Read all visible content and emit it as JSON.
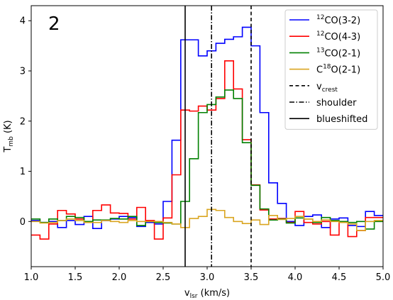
{
  "chart_data": {
    "type": "line",
    "step": true,
    "panel_label": "2",
    "xlabel": "v_lsr (km/s)",
    "xlabel_parts": {
      "main": "v",
      "sub": "lsr",
      "rest": " (km/s)"
    },
    "ylabel": "T_mb (K)",
    "ylabel_parts": {
      "main": "T",
      "sub": "mb",
      "rest": " (K)"
    },
    "xlim": [
      1.0,
      5.0
    ],
    "ylim": [
      -0.9,
      4.3
    ],
    "xticks": [
      1.0,
      1.5,
      2.0,
      2.5,
      3.0,
      3.5,
      4.0,
      4.5,
      5.0
    ],
    "xtick_labels": [
      "1.0",
      "1.5",
      "2.0",
      "2.5",
      "3.0",
      "3.5",
      "4.0",
      "4.5",
      "5.0"
    ],
    "yticks": [
      0,
      1,
      2,
      3,
      4
    ],
    "ytick_labels": [
      "0",
      "1",
      "2",
      "3",
      "4"
    ],
    "legend_position": "top-right",
    "series": [
      {
        "name": "12CO(3-2)",
        "label": {
          "sup": "12",
          "main": "CO(3-2)"
        },
        "color": "#0000ff",
        "x": [
          1.0,
          1.1,
          1.2,
          1.3,
          1.4,
          1.5,
          1.6,
          1.7,
          1.8,
          1.9,
          2.0,
          2.1,
          2.2,
          2.3,
          2.4,
          2.5,
          2.6,
          2.7,
          2.8,
          2.9,
          3.0,
          3.1,
          3.2,
          3.3,
          3.4,
          3.5,
          3.6,
          3.7,
          3.8,
          3.9,
          4.0,
          4.1,
          4.2,
          4.3,
          4.4,
          4.5,
          4.6,
          4.7,
          4.8,
          4.9
        ],
        "y": [
          0.02,
          -0.02,
          0.0,
          -0.12,
          0.02,
          -0.06,
          0.1,
          -0.14,
          0.02,
          0.05,
          0.1,
          0.08,
          -0.1,
          -0.02,
          -0.05,
          0.4,
          1.62,
          3.62,
          3.62,
          3.3,
          3.4,
          3.55,
          3.63,
          3.68,
          3.87,
          3.5,
          2.17,
          0.77,
          0.36,
          0.0,
          -0.08,
          0.1,
          0.13,
          -0.12,
          0.05,
          0.07,
          -0.08,
          -0.1,
          0.2,
          0.12
        ]
      },
      {
        "name": "12CO(4-3)",
        "label": {
          "sup": "12",
          "main": "CO(4-3)"
        },
        "color": "#ff0000",
        "x": [
          1.0,
          1.1,
          1.2,
          1.3,
          1.4,
          1.5,
          1.6,
          1.7,
          1.8,
          1.9,
          2.0,
          2.1,
          2.2,
          2.3,
          2.4,
          2.5,
          2.6,
          2.7,
          2.8,
          2.9,
          3.0,
          3.1,
          3.2,
          3.3,
          3.4,
          3.5,
          3.6,
          3.7,
          3.8,
          3.9,
          4.0,
          4.1,
          4.2,
          4.3,
          4.4,
          4.5,
          4.6,
          4.7,
          4.8,
          4.9
        ],
        "y": [
          -0.27,
          -0.35,
          -0.05,
          0.22,
          0.15,
          0.05,
          0.0,
          0.22,
          0.33,
          0.17,
          0.16,
          0.05,
          0.28,
          0.02,
          -0.35,
          0.07,
          0.93,
          2.22,
          2.2,
          2.3,
          2.22,
          2.45,
          3.2,
          2.64,
          1.63,
          0.73,
          0.23,
          0.05,
          0.06,
          -0.02,
          0.2,
          -0.02,
          -0.05,
          0.0,
          -0.27,
          -0.02,
          -0.3,
          -0.18,
          0.08,
          0.08
        ]
      },
      {
        "name": "13CO(2-1)",
        "label": {
          "sup": "13",
          "main": "CO(2-1)"
        },
        "color": "#008000",
        "x": [
          1.0,
          1.1,
          1.2,
          1.3,
          1.4,
          1.5,
          1.6,
          1.7,
          1.8,
          1.9,
          2.0,
          2.1,
          2.2,
          2.3,
          2.4,
          2.5,
          2.6,
          2.7,
          2.8,
          2.9,
          3.0,
          3.1,
          3.2,
          3.3,
          3.4,
          3.5,
          3.6,
          3.7,
          3.8,
          3.9,
          4.0,
          4.1,
          4.2,
          4.3,
          4.4,
          4.5,
          4.6,
          4.7,
          4.8,
          4.9
        ],
        "y": [
          0.05,
          -0.02,
          0.05,
          0.02,
          0.1,
          0.08,
          0.0,
          0.03,
          0.03,
          0.06,
          0.05,
          0.1,
          -0.08,
          0.0,
          -0.02,
          -0.03,
          -0.05,
          0.4,
          1.25,
          2.17,
          2.33,
          2.48,
          2.62,
          2.45,
          1.57,
          0.72,
          0.25,
          0.03,
          0.05,
          -0.03,
          0.07,
          0.05,
          -0.02,
          0.08,
          0.02,
          0.0,
          -0.02,
          0.0,
          -0.15,
          0.0
        ]
      },
      {
        "name": "C18O(2-1)",
        "label": {
          "pre": "C",
          "sup": "18",
          "main": "O(2-1)"
        },
        "color": "#daa520",
        "x": [
          1.0,
          1.1,
          1.2,
          1.3,
          1.4,
          1.5,
          1.6,
          1.7,
          1.8,
          1.9,
          2.0,
          2.1,
          2.2,
          2.3,
          2.4,
          2.5,
          2.6,
          2.7,
          2.8,
          2.9,
          3.0,
          3.1,
          3.2,
          3.3,
          3.4,
          3.5,
          3.6,
          3.7,
          3.8,
          3.9,
          4.0,
          4.1,
          4.2,
          4.3,
          4.4,
          4.5,
          4.6,
          4.7,
          4.8,
          4.9
        ],
        "y": [
          0.0,
          -0.03,
          -0.02,
          0.02,
          0.05,
          0.02,
          -0.02,
          -0.02,
          0.02,
          0.0,
          -0.02,
          0.02,
          0.0,
          0.0,
          0.0,
          -0.02,
          -0.05,
          -0.12,
          0.06,
          0.1,
          0.24,
          0.22,
          0.08,
          0.0,
          -0.04,
          0.03,
          -0.06,
          0.12,
          0.04,
          0.06,
          0.1,
          0.05,
          0.0,
          0.03,
          0.0,
          -0.02,
          -0.05,
          -0.18,
          0.0,
          0.02
        ]
      }
    ],
    "vlines": [
      {
        "x": 3.5,
        "style": "dashed",
        "name": "v_crest",
        "label": {
          "main": "v",
          "sub": "crest"
        }
      },
      {
        "x": 3.05,
        "style": "dashdot",
        "name": "shoulder",
        "label": {
          "main": "shoulder"
        }
      },
      {
        "x": 2.75,
        "style": "solid",
        "name": "blueshifted",
        "label": {
          "main": "blueshifted"
        }
      }
    ]
  }
}
